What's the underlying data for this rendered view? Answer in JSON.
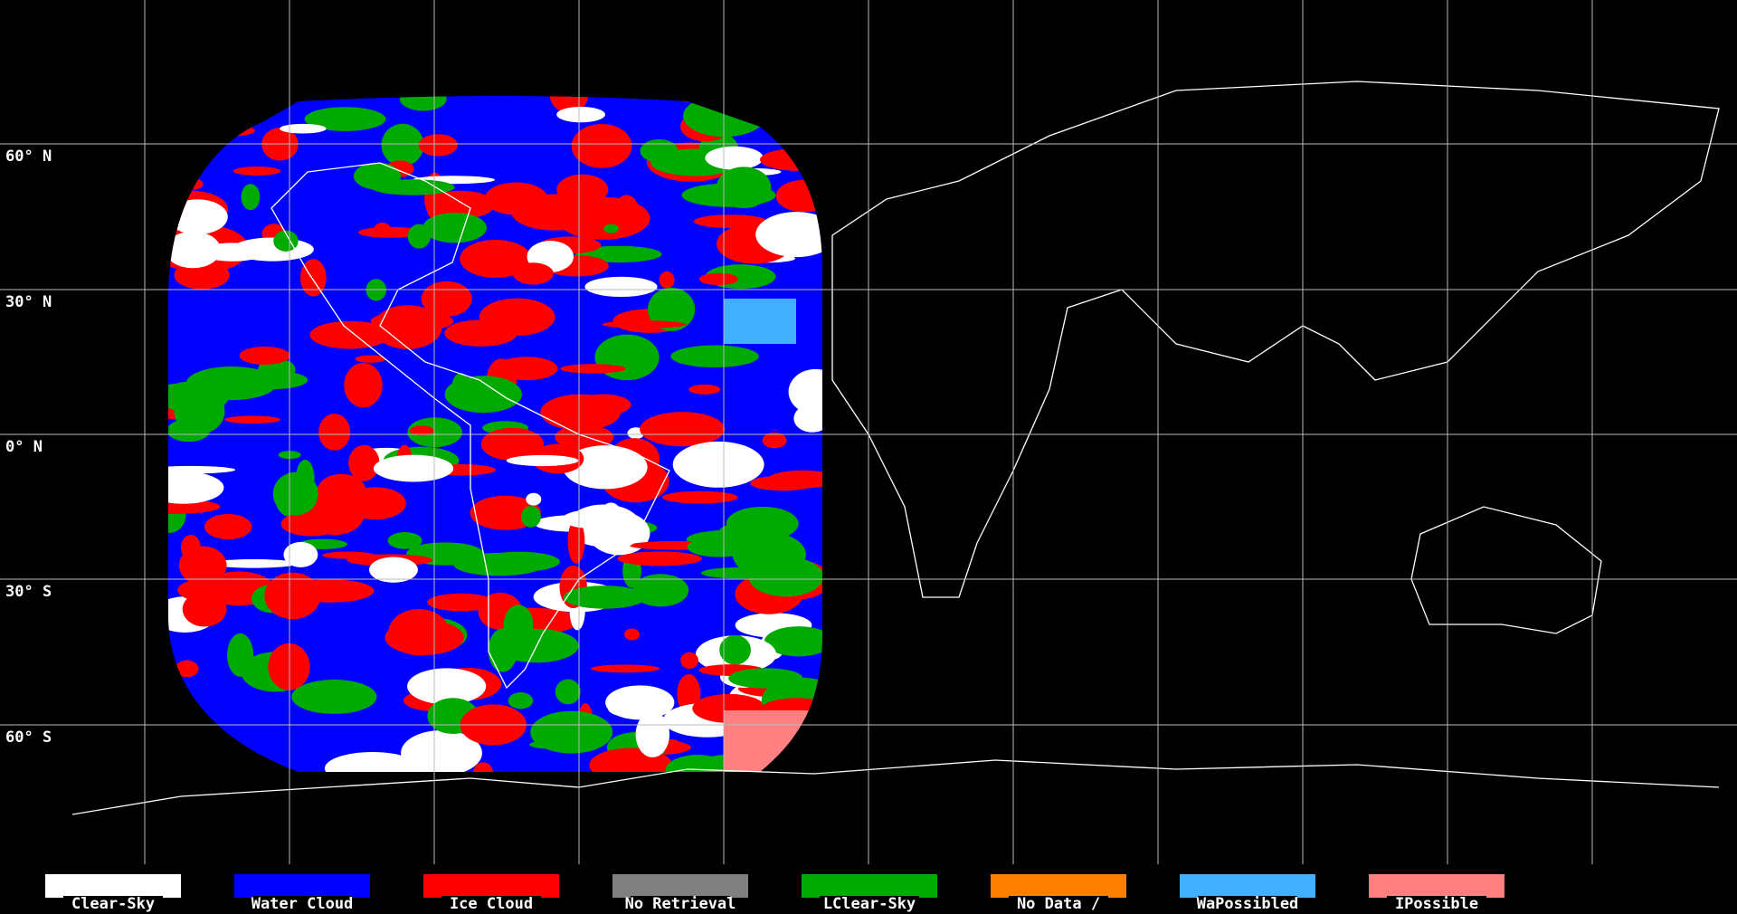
{
  "map": {
    "lat_labels": [
      "60° N",
      "30° N",
      "0° N",
      "30° S",
      "60° S"
    ]
  },
  "legend": {
    "items": [
      {
        "label": "Clear-Sky",
        "color": "#ffffff"
      },
      {
        "label": "Water Cloud",
        "color": "#0000ff"
      },
      {
        "label": "Ice Cloud",
        "color": "#ff0000"
      },
      {
        "label": "No Retrieval",
        "color": "#808080"
      },
      {
        "label": "LClear-Sky",
        "color": "#00aa00"
      },
      {
        "label": "No Data /",
        "color": "#ff8000"
      },
      {
        "label": "WaPossibled",
        "color": "#40b0ff"
      },
      {
        "label": "IPossible",
        "color": "#ff8080"
      }
    ]
  }
}
